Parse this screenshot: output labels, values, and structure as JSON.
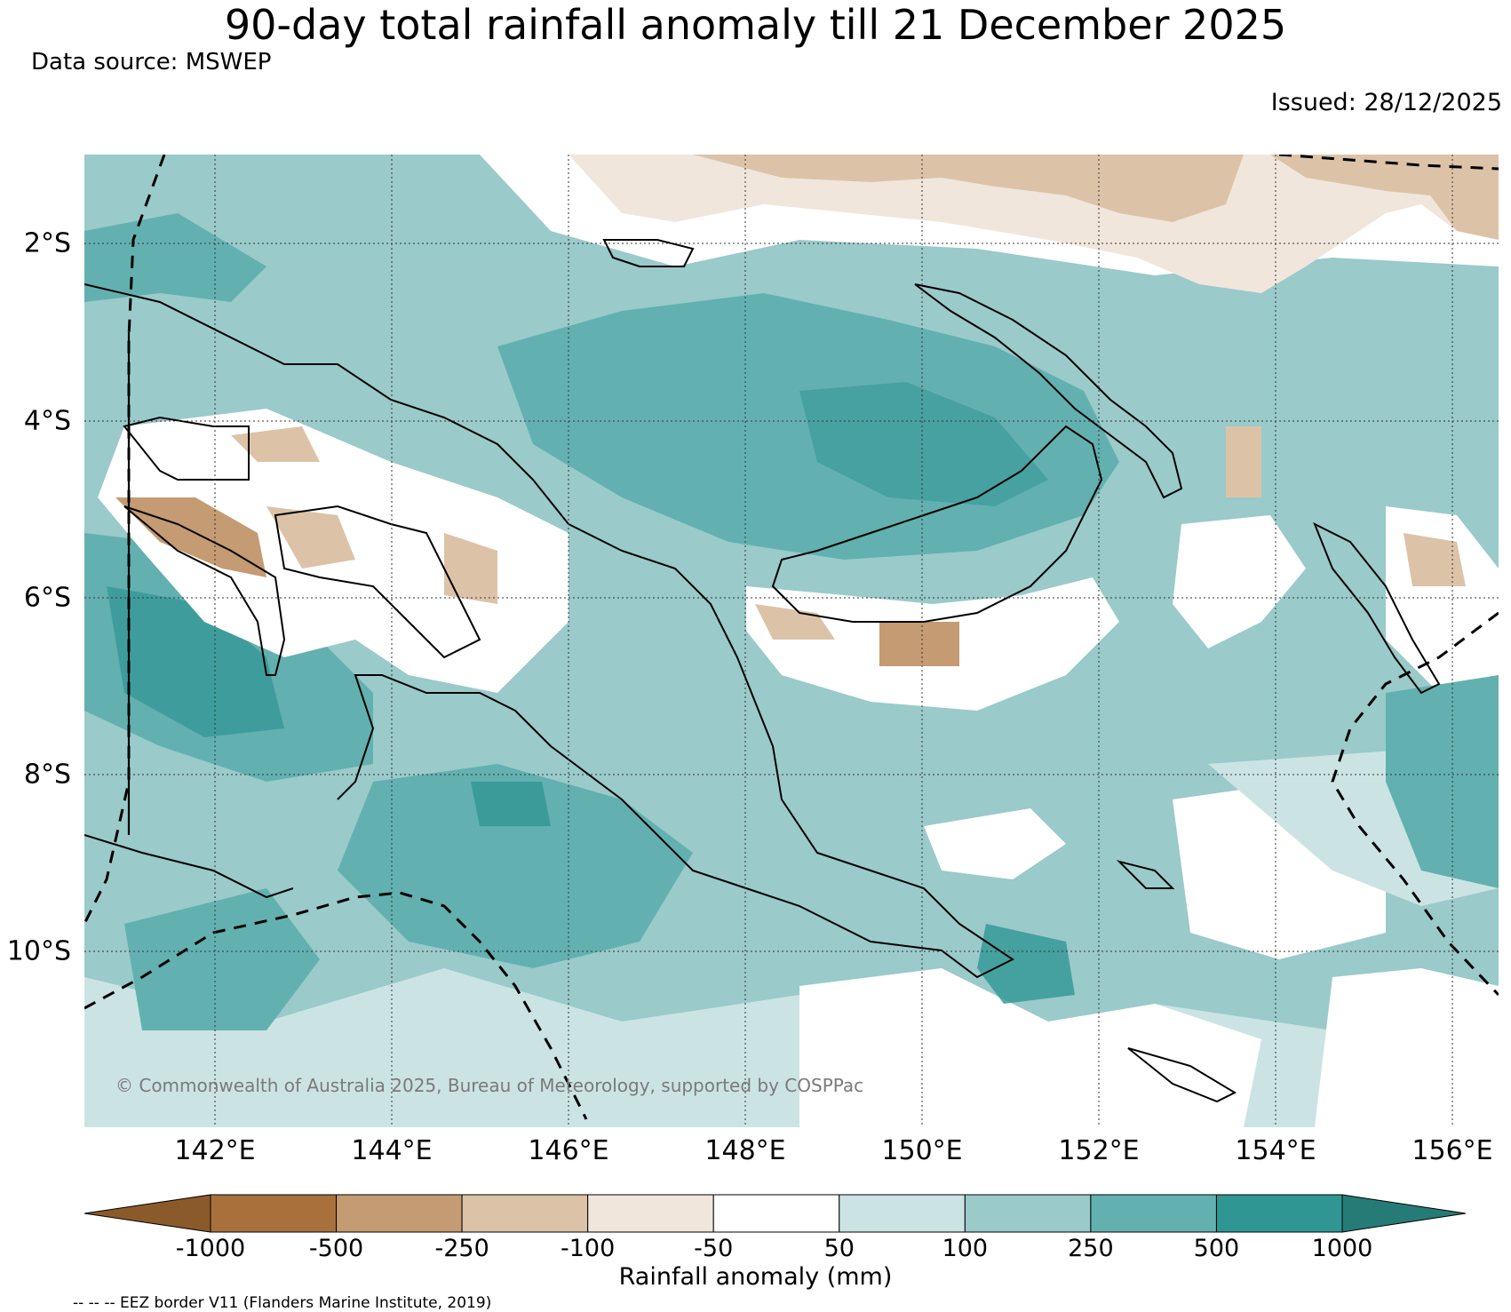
{
  "title": "90-day total rainfall anomaly till 21 December 2025",
  "source": "Data source: MSWEP",
  "issued": "Issued: 28/12/2025",
  "copyright": "© Commonwealth of Australia 2025, Bureau of Meteorology, supported by COSPPac",
  "lat_labels": [
    "2°S",
    "4°S",
    "6°S",
    "8°S",
    "10°S"
  ],
  "lon_labels": [
    "142°E",
    "144°E",
    "146°E",
    "148°E",
    "150°E",
    "152°E",
    "154°E",
    "156°E"
  ],
  "colorbar": {
    "label": "Rainfall anomaly (mm)",
    "ticks": [
      "-1000",
      "-500",
      "-250",
      "-100",
      "-50",
      "50",
      "100",
      "250",
      "500",
      "1000"
    ],
    "colors": [
      "#8b5a2b",
      "#a8713c",
      "#c49b72",
      "#dcc3a8",
      "#f1e6dc",
      "#ffffff",
      "#cbe4e3",
      "#9acaca",
      "#63b0b0",
      "#2f9694",
      "#267b77"
    ]
  },
  "footnote": "-- -- -- EEZ border V11 (Flanders Marine Institute, 2019)"
}
